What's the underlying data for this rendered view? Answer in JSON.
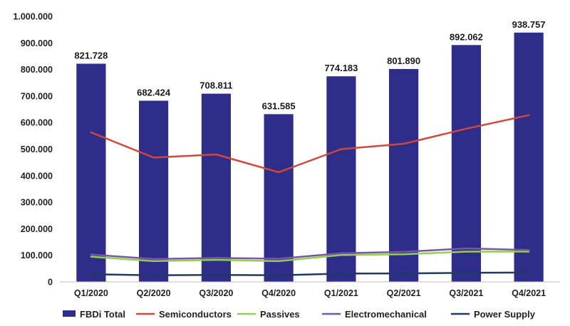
{
  "chart_data": {
    "type": "bar",
    "title": "",
    "xlabel": "",
    "ylabel": "",
    "categories": [
      "Q1/2020",
      "Q2/2020",
      "Q3/2020",
      "Q4/2020",
      "Q1/2021",
      "Q2/2021",
      "Q3/2021",
      "Q4/2021"
    ],
    "ylim": [
      0,
      1000000
    ],
    "y_ticks": [
      "0",
      "100.000",
      "200.000",
      "300.000",
      "400.000",
      "500.000",
      "600.000",
      "700.000",
      "800.000",
      "900.000",
      "1.000.000"
    ],
    "grid": false,
    "legend_position": "bottom",
    "bar_series": {
      "name": "FBDi Total",
      "color": "#2e2e8a",
      "values": [
        821728,
        682424,
        708811,
        631585,
        774183,
        801890,
        892062,
        938757
      ],
      "data_labels": [
        "821.728",
        "682.424",
        "708.811",
        "631.585",
        "774.183",
        "801.890",
        "892.062",
        "938.757"
      ]
    },
    "line_series": [
      {
        "name": "Semiconductors",
        "color": "#d0473c",
        "values": [
          563000,
          468000,
          480000,
          413000,
          500000,
          520000,
          577000,
          628000
        ]
      },
      {
        "name": "Passives",
        "color": "#92cf50",
        "values": [
          95000,
          78000,
          83000,
          78000,
          101000,
          104000,
          114000,
          114000
        ]
      },
      {
        "name": "Electromechanical",
        "color": "#7a55a5",
        "values": [
          103000,
          86000,
          90000,
          87000,
          108000,
          113000,
          126000,
          120000
        ]
      },
      {
        "name": "Power Supply",
        "color": "#1e3a63",
        "values": [
          29000,
          25000,
          26000,
          25000,
          31000,
          32000,
          34000,
          35000
        ]
      }
    ]
  }
}
